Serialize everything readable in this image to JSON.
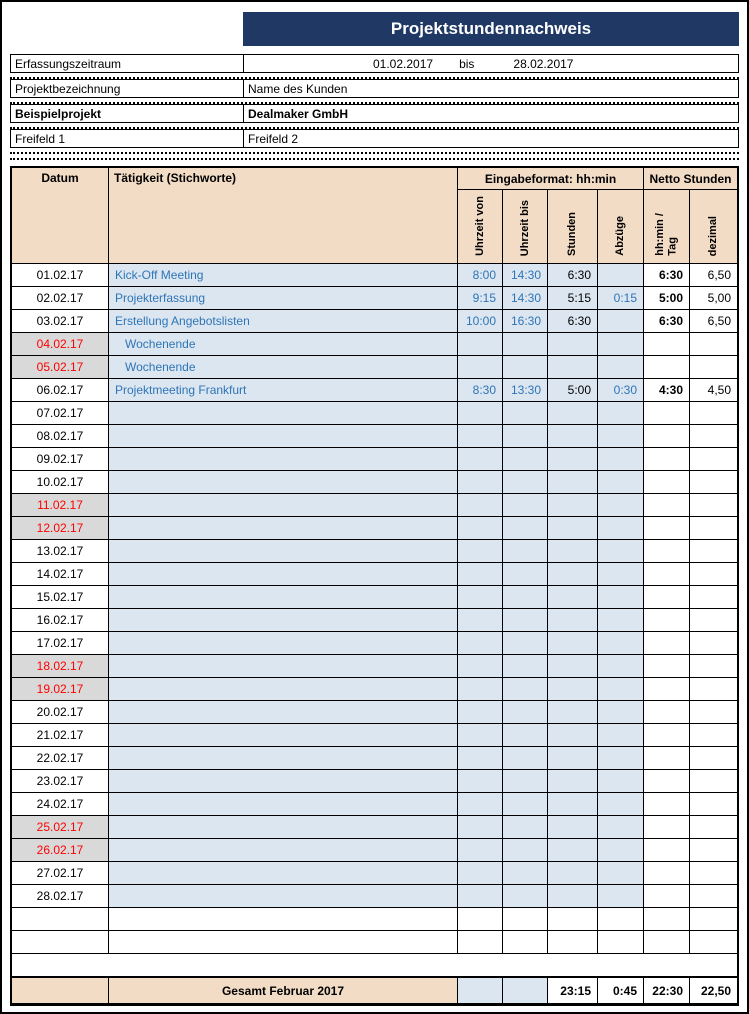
{
  "title": "Projektstundennachweis",
  "form": {
    "period_label": "Erfassungszeitraum",
    "period_start": "01.02.2017",
    "period_separator": "bis",
    "period_end": "28.02.2017",
    "project_label": "Projektbezeichnung",
    "project_value": "Name des Kunden",
    "example_label": "Beispielprojekt",
    "example_value": "Dealmaker GmbH",
    "free1_label": "Freifeld 1",
    "free2_label": "Freifeld 2"
  },
  "table": {
    "header": {
      "datum": "Datum",
      "taetigkeit": "Tätigkeit (Stichworte)",
      "eingabeformat": "Eingabeformat: hh:min",
      "netto": "Netto Stunden",
      "cols": [
        "Uhrzeit von",
        "Uhrzeit bis",
        "Stunden",
        "Abzüge",
        "hh:min /\nTag",
        "dezimal"
      ]
    },
    "rows": [
      {
        "date": "01.02.17",
        "weekend": false,
        "activity": "Kick-Off Meeting",
        "von": "8:00",
        "bis": "14:30",
        "stunden": "6:30",
        "abzuege": "",
        "tag": "6:30",
        "dezimal": "6,50"
      },
      {
        "date": "02.02.17",
        "weekend": false,
        "activity": "Projekterfassung",
        "von": "9:15",
        "bis": "14:30",
        "stunden": "5:15",
        "abzuege": "0:15",
        "tag": "5:00",
        "dezimal": "5,00"
      },
      {
        "date": "03.02.17",
        "weekend": false,
        "activity": "Erstellung Angebotslisten",
        "von": "10:00",
        "bis": "16:30",
        "stunden": "6:30",
        "abzuege": "",
        "tag": "6:30",
        "dezimal": "6,50"
      },
      {
        "date": "04.02.17",
        "weekend": true,
        "activity": "Wochenende",
        "von": "",
        "bis": "",
        "stunden": "",
        "abzuege": "",
        "tag": "",
        "dezimal": ""
      },
      {
        "date": "05.02.17",
        "weekend": true,
        "activity": "Wochenende",
        "von": "",
        "bis": "",
        "stunden": "",
        "abzuege": "",
        "tag": "",
        "dezimal": ""
      },
      {
        "date": "06.02.17",
        "weekend": false,
        "activity": "Projektmeeting Frankfurt",
        "von": "8:30",
        "bis": "13:30",
        "stunden": "5:00",
        "abzuege": "0:30",
        "tag": "4:30",
        "dezimal": "4,50"
      },
      {
        "date": "07.02.17",
        "weekend": false,
        "activity": "",
        "von": "",
        "bis": "",
        "stunden": "",
        "abzuege": "",
        "tag": "",
        "dezimal": ""
      },
      {
        "date": "08.02.17",
        "weekend": false,
        "activity": "",
        "von": "",
        "bis": "",
        "stunden": "",
        "abzuege": "",
        "tag": "",
        "dezimal": ""
      },
      {
        "date": "09.02.17",
        "weekend": false,
        "activity": "",
        "von": "",
        "bis": "",
        "stunden": "",
        "abzuege": "",
        "tag": "",
        "dezimal": ""
      },
      {
        "date": "10.02.17",
        "weekend": false,
        "activity": "",
        "von": "",
        "bis": "",
        "stunden": "",
        "abzuege": "",
        "tag": "",
        "dezimal": ""
      },
      {
        "date": "11.02.17",
        "weekend": true,
        "activity": "",
        "von": "",
        "bis": "",
        "stunden": "",
        "abzuege": "",
        "tag": "",
        "dezimal": ""
      },
      {
        "date": "12.02.17",
        "weekend": true,
        "activity": "",
        "von": "",
        "bis": "",
        "stunden": "",
        "abzuege": "",
        "tag": "",
        "dezimal": ""
      },
      {
        "date": "13.02.17",
        "weekend": false,
        "activity": "",
        "von": "",
        "bis": "",
        "stunden": "",
        "abzuege": "",
        "tag": "",
        "dezimal": ""
      },
      {
        "date": "14.02.17",
        "weekend": false,
        "activity": "",
        "von": "",
        "bis": "",
        "stunden": "",
        "abzuege": "",
        "tag": "",
        "dezimal": ""
      },
      {
        "date": "15.02.17",
        "weekend": false,
        "activity": "",
        "von": "",
        "bis": "",
        "stunden": "",
        "abzuege": "",
        "tag": "",
        "dezimal": ""
      },
      {
        "date": "16.02.17",
        "weekend": false,
        "activity": "",
        "von": "",
        "bis": "",
        "stunden": "",
        "abzuege": "",
        "tag": "",
        "dezimal": ""
      },
      {
        "date": "17.02.17",
        "weekend": false,
        "activity": "",
        "von": "",
        "bis": "",
        "stunden": "",
        "abzuege": "",
        "tag": "",
        "dezimal": ""
      },
      {
        "date": "18.02.17",
        "weekend": true,
        "activity": "",
        "von": "",
        "bis": "",
        "stunden": "",
        "abzuege": "",
        "tag": "",
        "dezimal": ""
      },
      {
        "date": "19.02.17",
        "weekend": true,
        "activity": "",
        "von": "",
        "bis": "",
        "stunden": "",
        "abzuege": "",
        "tag": "",
        "dezimal": ""
      },
      {
        "date": "20.02.17",
        "weekend": false,
        "activity": "",
        "von": "",
        "bis": "",
        "stunden": "",
        "abzuege": "",
        "tag": "",
        "dezimal": ""
      },
      {
        "date": "21.02.17",
        "weekend": false,
        "activity": "",
        "von": "",
        "bis": "",
        "stunden": "",
        "abzuege": "",
        "tag": "",
        "dezimal": ""
      },
      {
        "date": "22.02.17",
        "weekend": false,
        "activity": "",
        "von": "",
        "bis": "",
        "stunden": "",
        "abzuege": "",
        "tag": "",
        "dezimal": ""
      },
      {
        "date": "23.02.17",
        "weekend": false,
        "activity": "",
        "von": "",
        "bis": "",
        "stunden": "",
        "abzuege": "",
        "tag": "",
        "dezimal": ""
      },
      {
        "date": "24.02.17",
        "weekend": false,
        "activity": "",
        "von": "",
        "bis": "",
        "stunden": "",
        "abzuege": "",
        "tag": "",
        "dezimal": ""
      },
      {
        "date": "25.02.17",
        "weekend": true,
        "activity": "",
        "von": "",
        "bis": "",
        "stunden": "",
        "abzuege": "",
        "tag": "",
        "dezimal": ""
      },
      {
        "date": "26.02.17",
        "weekend": true,
        "activity": "",
        "von": "",
        "bis": "",
        "stunden": "",
        "abzuege": "",
        "tag": "",
        "dezimal": ""
      },
      {
        "date": "27.02.17",
        "weekend": false,
        "activity": "",
        "von": "",
        "bis": "",
        "stunden": "",
        "abzuege": "",
        "tag": "",
        "dezimal": ""
      },
      {
        "date": "28.02.17",
        "weekend": false,
        "activity": "",
        "von": "",
        "bis": "",
        "stunden": "",
        "abzuege": "",
        "tag": "",
        "dezimal": ""
      }
    ],
    "blank_row_count": 2,
    "total": {
      "label": "Gesamt Februar 2017",
      "stunden": "23:15",
      "abzuege": "0:45",
      "hhmin_tag": "22:30",
      "dezimal": "22,50"
    }
  },
  "colors": {
    "header_navy": "#1F3864",
    "header_beige": "#F2DCC5",
    "cell_blue": "#DCE6F1",
    "weekend_gray": "#D9D9D9",
    "weekend_red": "#FF0000",
    "input_blue": "#2E75B6"
  }
}
